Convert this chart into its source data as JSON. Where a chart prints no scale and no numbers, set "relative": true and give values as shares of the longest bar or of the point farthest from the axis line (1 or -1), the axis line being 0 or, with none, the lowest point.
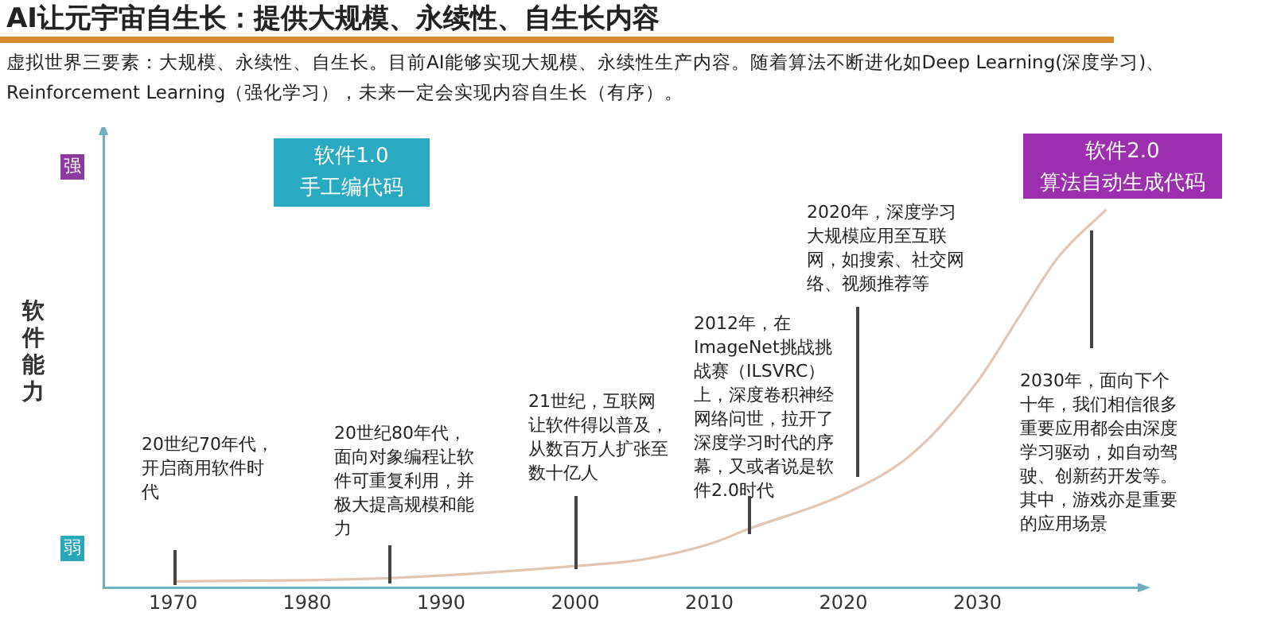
{
  "chart_data": {
    "type": "line",
    "title": "AI让元宇宙自生长：提供大规模、永续性、自生长内容",
    "subtitle": "虚拟世界三要素：大规模、永续性、自生长。目前AI能够实现大规模、永续性生产内容。随着算法不断进化如Deep  Learning(深度学习)、Reinforcement Learning（强化学习），未来一定会实现内容自生长（有序）。",
    "ylabel": "软件能力",
    "relative": true,
    "xlim": [
      1964.8,
      2042.2
    ],
    "xticks": [
      1970,
      1980,
      1990,
      2000,
      2010,
      2020,
      2030
    ],
    "grid": false,
    "legend": false,
    "marker": "none",
    "line_style": "solid",
    "series": [
      {
        "color": "#e3c6b2",
        "x": [
          1970,
          1986,
          2000,
          2005,
          2010,
          2013,
          2020,
          2025,
          2030,
          2033,
          2036,
          2039.6
        ],
        "values": [
          0.016,
          0.025,
          0.057,
          0.074,
          0.115,
          0.156,
          0.246,
          0.35,
          0.545,
          0.71,
          0.873,
          1
        ]
      }
    ],
    "annotations": [
      "20世纪70年代，开启商用软件时代",
      "20世纪80年代，面向对象编程让软件可重复利用，并极大提高规模和能力",
      "21世纪，互联网让软件得以普及，从数百万人扩张至数十亿人",
      "2012年，在ImageNet挑战挑战赛（ILSVRC）上，深度卷积神经网络问世，拉开了深度学习时代的序幕，又或者说是软件2.0时代",
      "2020年，深度学习大规模应用至互联网，如搜索、社交网络、视频推荐等",
      "2030年，面向下个十年，我们相信很多重要应用都会由深度学习驱动，如自动驾驶、创新药开发等。其中，游戏亦是重要的应用场景",
      "强",
      "弱",
      "软件1.0\n手工编代码",
      "软件2.0\n算法自动生成代码"
    ]
  }
}
